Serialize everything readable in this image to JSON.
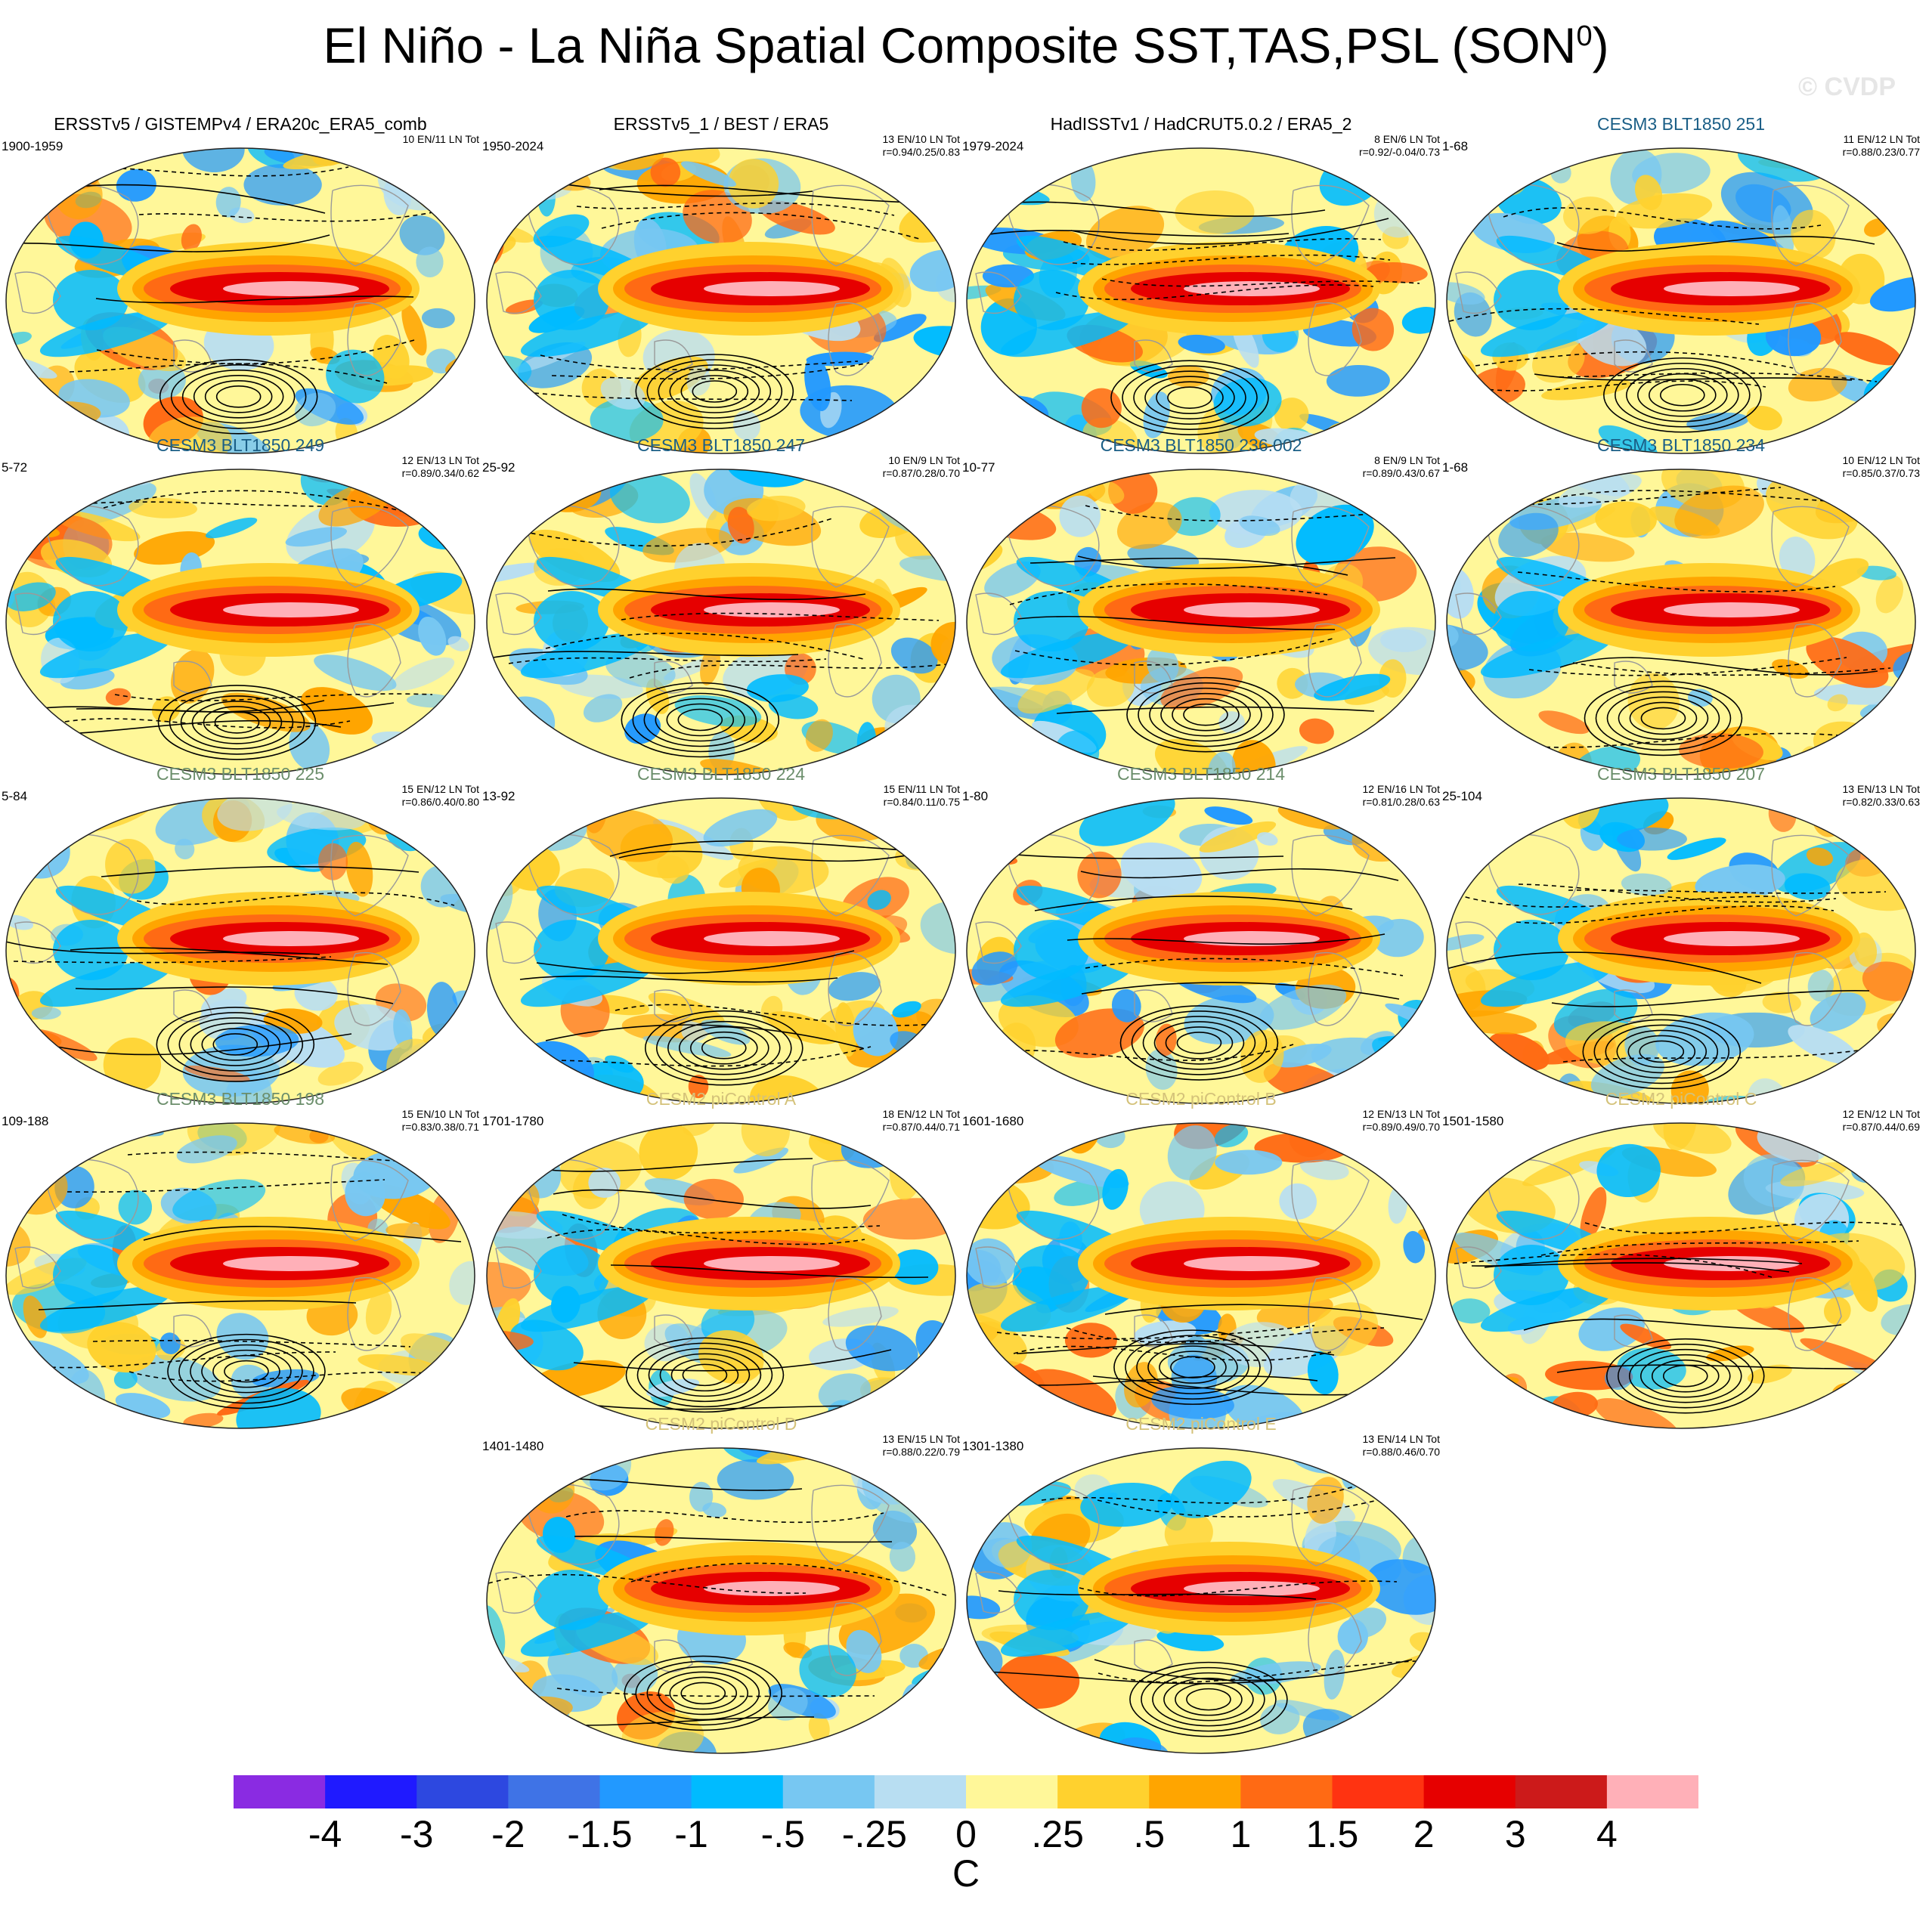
{
  "title": {
    "main": "El Niño - La Niña Spatial Composite SST,TAS,PSL (SON",
    "sup": "0",
    "close": ")"
  },
  "watermark": "© CVDP",
  "colors": {
    "obs_title": "#000000",
    "blt_title_a": "#1a5e86",
    "blt_title_b": "#6b8e6b",
    "picontrol_title": "#d4c27a"
  },
  "panels": [
    {
      "title": "ERSSTv5 / GISTEMPv4 / ERA20c_ERA5_comb",
      "style": "obs",
      "years": "1900-1959",
      "stat1": "10 EN/11 LN Tot",
      "stat2": "",
      "seed": 3
    },
    {
      "title": "ERSSTv5_1 / BEST / ERA5",
      "style": "obs",
      "years": "1950-2024",
      "stat1": "13 EN/10 LN Tot",
      "stat2": "r=0.94/0.25/0.83",
      "seed": 7
    },
    {
      "title": "HadISSTv1 / HadCRUT5.0.2 / ERA5_2",
      "style": "obs",
      "years": "1979-2024",
      "stat1": "8 EN/6 LN Tot",
      "stat2": "r=0.92/-0.04/0.73",
      "seed": 11
    },
    {
      "title": "CESM3 BLT1850 251",
      "style": "blt_a",
      "years": "1-68",
      "stat1": "11 EN/12 LN Tot",
      "stat2": "r=0.88/0.23/0.77",
      "seed": 13
    },
    {
      "title": "CESM3 BLT1850 249",
      "style": "blt_a",
      "years": "5-72",
      "stat1": "12 EN/13 LN Tot",
      "stat2": "r=0.89/0.34/0.62",
      "seed": 17
    },
    {
      "title": "CESM3 BLT1850 247",
      "style": "blt_a",
      "years": "25-92",
      "stat1": "10 EN/9 LN Tot",
      "stat2": "r=0.87/0.28/0.70",
      "seed": 19
    },
    {
      "title": "CESM3 BLT1850 236.002",
      "style": "blt_a",
      "years": "10-77",
      "stat1": "8 EN/9 LN Tot",
      "stat2": "r=0.89/0.43/0.67",
      "seed": 23
    },
    {
      "title": "CESM3 BLT1850 234",
      "style": "blt_a",
      "years": "1-68",
      "stat1": "10 EN/12 LN Tot",
      "stat2": "r=0.85/0.37/0.73",
      "seed": 29
    },
    {
      "title": "CESM3 BLT1850 225",
      "style": "blt_b",
      "years": "5-84",
      "stat1": "15 EN/12 LN Tot",
      "stat2": "r=0.86/0.40/0.80",
      "seed": 31
    },
    {
      "title": "CESM3 BLT1850 224",
      "style": "blt_b",
      "years": "13-92",
      "stat1": "15 EN/11 LN Tot",
      "stat2": "r=0.84/0.11/0.75",
      "seed": 37
    },
    {
      "title": "CESM3 BLT1850 214",
      "style": "blt_b",
      "years": "1-80",
      "stat1": "12 EN/16 LN Tot",
      "stat2": "r=0.81/0.28/0.63",
      "seed": 41
    },
    {
      "title": "CESM3 BLT1850 207",
      "style": "blt_b",
      "years": "25-104",
      "stat1": "13 EN/13 LN Tot",
      "stat2": "r=0.82/0.33/0.63",
      "seed": 43
    },
    {
      "title": "CESM3 BLT1850 198",
      "style": "blt_b",
      "years": "109-188",
      "stat1": "15 EN/10 LN Tot",
      "stat2": "r=0.83/0.38/0.71",
      "seed": 47
    },
    {
      "title": "CESM2 piControl A",
      "style": "pic",
      "years": "1701-1780",
      "stat1": "18 EN/12 LN Tot",
      "stat2": "r=0.87/0.44/0.71",
      "seed": 53
    },
    {
      "title": "CESM2 piControl B",
      "style": "pic",
      "years": "1601-1680",
      "stat1": "12 EN/13 LN Tot",
      "stat2": "r=0.89/0.49/0.70",
      "seed": 59
    },
    {
      "title": "CESM2 piControl C",
      "style": "pic",
      "years": "1501-1580",
      "stat1": "12 EN/12 LN Tot",
      "stat2": "r=0.87/0.44/0.69",
      "seed": 61
    },
    {
      "title": "CESM2 piControl D",
      "style": "pic",
      "years": "1401-1480",
      "stat1": "13 EN/15 LN Tot",
      "stat2": "r=0.88/0.22/0.79",
      "seed": 67
    },
    {
      "title": "CESM2 piControl E",
      "style": "pic",
      "years": "1301-1380",
      "stat1": "13 EN/14 LN Tot",
      "stat2": "r=0.88/0.46/0.70",
      "seed": 71
    }
  ],
  "colorbar": {
    "colors": [
      "#8a2be2",
      "#1f1aff",
      "#2d48e0",
      "#3f73e6",
      "#2299ff",
      "#00bbff",
      "#77c7f2",
      "#b8def2",
      "#fff799",
      "#ffd12e",
      "#ffa500",
      "#ff6a14",
      "#ff3311",
      "#e60000",
      "#cc1a1a",
      "#ffb0b8"
    ],
    "labels": [
      "-4",
      "-3",
      "-2",
      "-1.5",
      "-1",
      "-.5",
      "-.25",
      "0",
      ".25",
      ".5",
      "1",
      "1.5",
      "2",
      "3",
      "4"
    ],
    "units": "C"
  }
}
